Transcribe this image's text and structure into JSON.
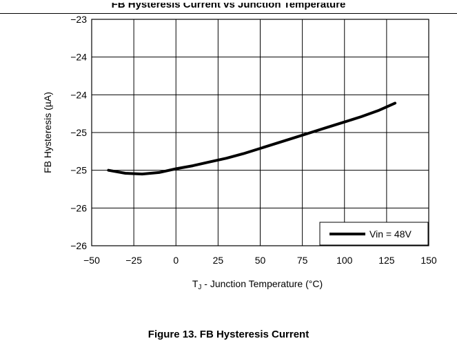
{
  "page_title": "FB Hysteresis Current vs Junction Temperature",
  "caption": "Figure 13. FB Hysteresis Current",
  "chart_data": {
    "type": "line",
    "title": "",
    "xlabel_main": "T",
    "xlabel_sub": "J",
    "xlabel_rest": " - Junction Temperature (°C)",
    "ylabel": "FB Hysteresis (µA)",
    "xlim": [
      -50,
      150
    ],
    "ylim": [
      -26,
      -23
    ],
    "x_ticks": [
      -50,
      -25,
      0,
      25,
      50,
      75,
      100,
      125,
      150
    ],
    "x_tick_labels": [
      "−50",
      "−25",
      "0",
      "25",
      "50",
      "75",
      "100",
      "125",
      "150"
    ],
    "y_ticks": [
      -23,
      -23.5,
      -24,
      -24.5,
      -25,
      -25.5,
      -26
    ],
    "y_tick_labels": [
      "−23",
      "−24",
      "−24",
      "−25",
      "−25",
      "−26",
      "−26"
    ],
    "grid": true,
    "legend_position": "bottom-right",
    "series": [
      {
        "name": "Vin = 48V",
        "color": "#000000",
        "x": [
          -40,
          -30,
          -20,
          -10,
          0,
          10,
          20,
          30,
          40,
          50,
          60,
          70,
          80,
          90,
          100,
          110,
          120,
          130
        ],
        "y": [
          -25.0,
          -25.04,
          -25.05,
          -25.03,
          -24.98,
          -24.94,
          -24.89,
          -24.84,
          -24.78,
          -24.71,
          -24.64,
          -24.57,
          -24.5,
          -24.43,
          -24.36,
          -24.29,
          -24.21,
          -24.11
        ]
      }
    ]
  }
}
